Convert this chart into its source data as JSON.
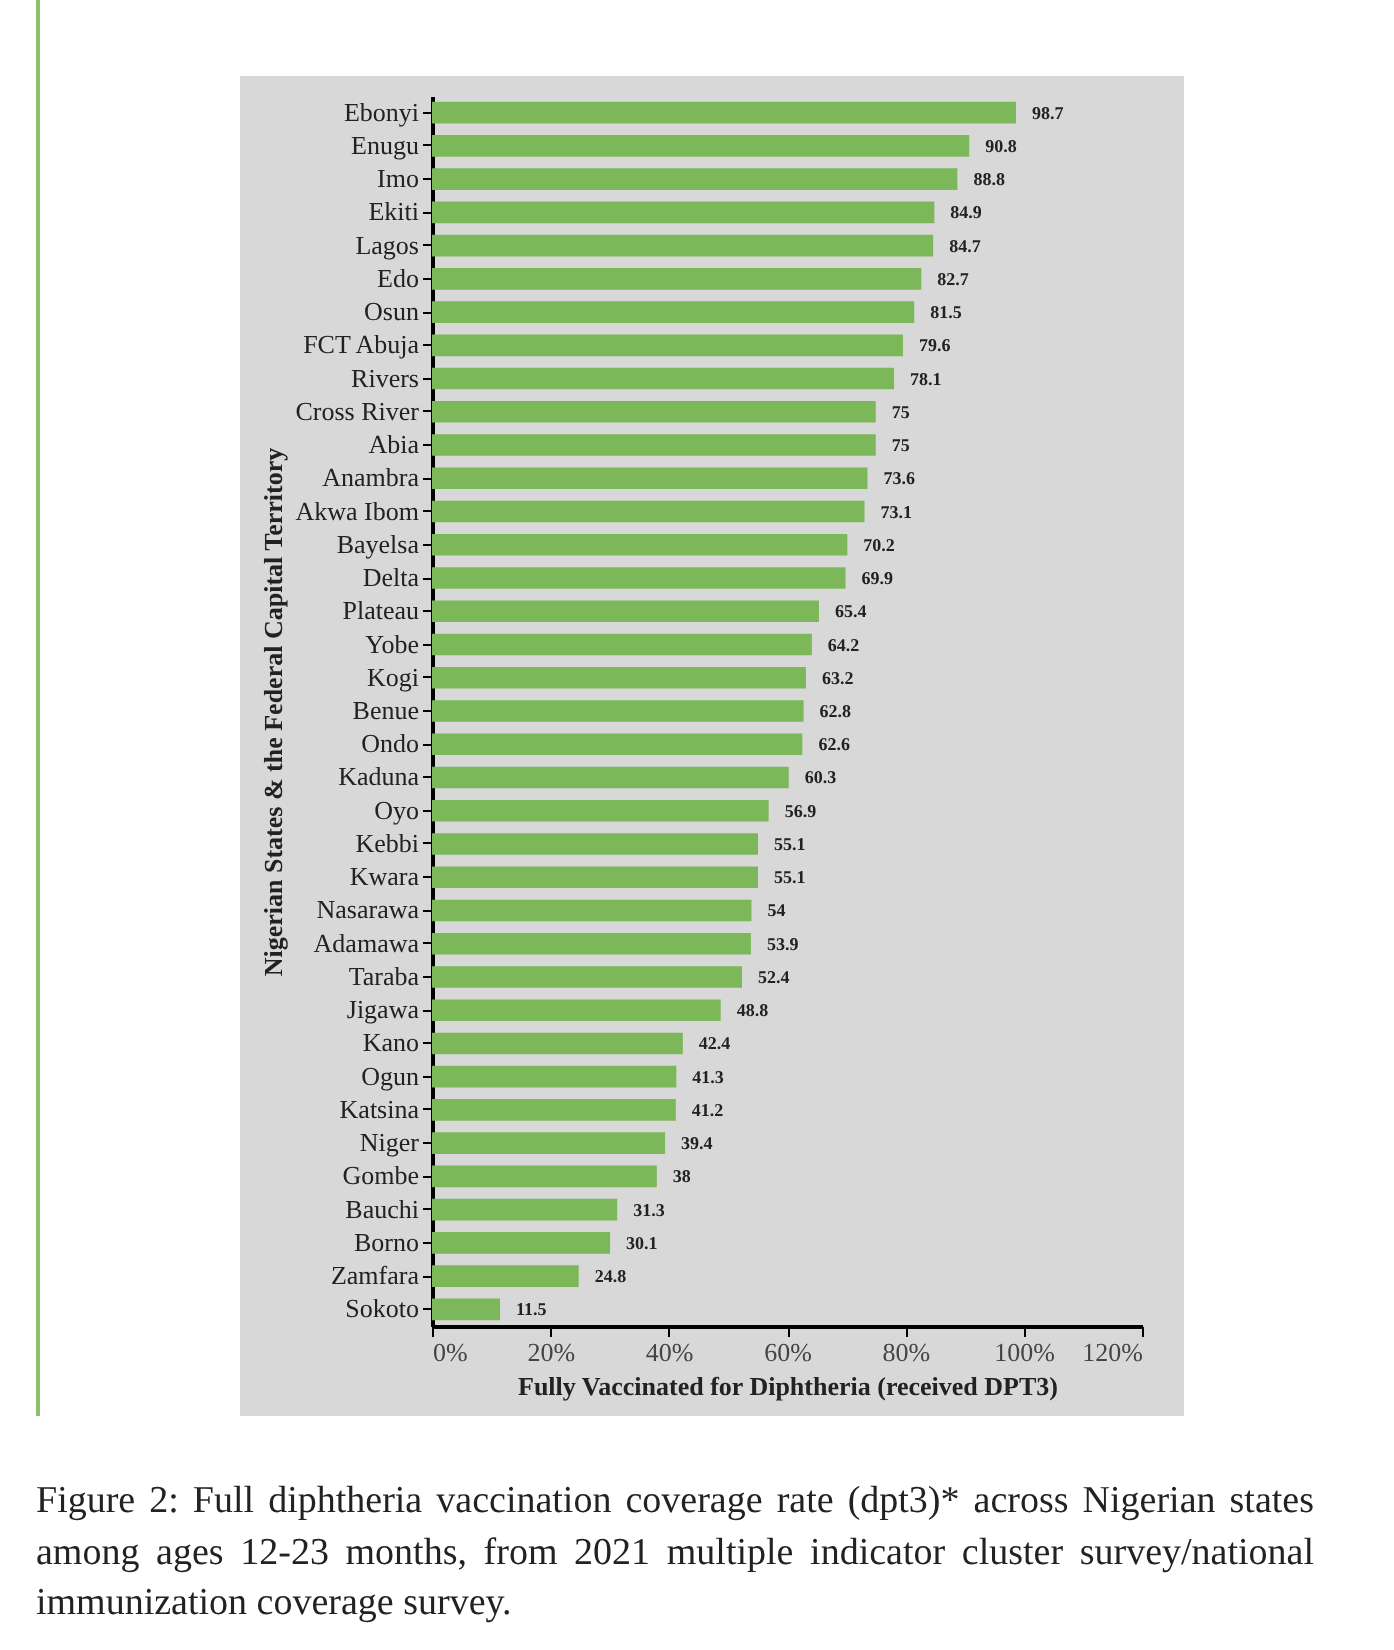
{
  "chart_data": {
    "type": "bar",
    "orientation": "horizontal",
    "xlabel": "Fully Vaccinated for Diphtheria (received DPT3)",
    "ylabel": "Nigerian  States & the Federal Capital Territory",
    "categories": [
      "Ebonyi",
      "Enugu",
      "Imo",
      "Ekiti",
      "Lagos",
      "Edo",
      "Osun",
      "FCT Abuja",
      "Rivers",
      "Cross River",
      "Abia",
      "Anambra",
      "Akwa Ibom",
      "Bayelsa",
      "Delta",
      "Plateau",
      "Yobe",
      "Kogi",
      "Benue",
      "Ondo",
      "Kaduna",
      "Oyo",
      "Kebbi",
      "Kwara",
      "Nasarawa",
      "Adamawa",
      "Taraba",
      "Jigawa",
      "Kano",
      "Ogun",
      "Katsina",
      "Niger",
      "Gombe",
      "Bauchi",
      "Borno",
      "Zamfara",
      "Sokoto"
    ],
    "values": [
      98.7,
      90.8,
      88.8,
      84.9,
      84.7,
      82.7,
      81.5,
      79.6,
      78.1,
      75,
      75,
      73.6,
      73.1,
      70.2,
      69.9,
      65.4,
      64.2,
      63.2,
      62.8,
      62.6,
      60.3,
      56.9,
      55.1,
      55.1,
      54,
      53.9,
      52.4,
      48.8,
      42.4,
      41.3,
      41.2,
      39.4,
      38,
      31.3,
      30.1,
      24.8,
      11.5
    ],
    "color": "#7cb85a",
    "data_labels": true,
    "xlim": [
      0,
      120
    ],
    "xticks": [
      {
        "value": 0,
        "label": "0%"
      },
      {
        "value": 20,
        "label": "20%"
      },
      {
        "value": 40,
        "label": "40%"
      },
      {
        "value": 60,
        "label": "60%"
      },
      {
        "value": 80,
        "label": "80%"
      },
      {
        "value": 100,
        "label": "100%"
      },
      {
        "value": 120,
        "label": "120%"
      }
    ],
    "annotations": [
      "Figure 2: Full diphtheria vaccination coverage rate (dpt3)* across Nigerian states among ages 12-23 months, from 2021 multiple indicator cluster survey/national immunization coverage survey."
    ]
  }
}
